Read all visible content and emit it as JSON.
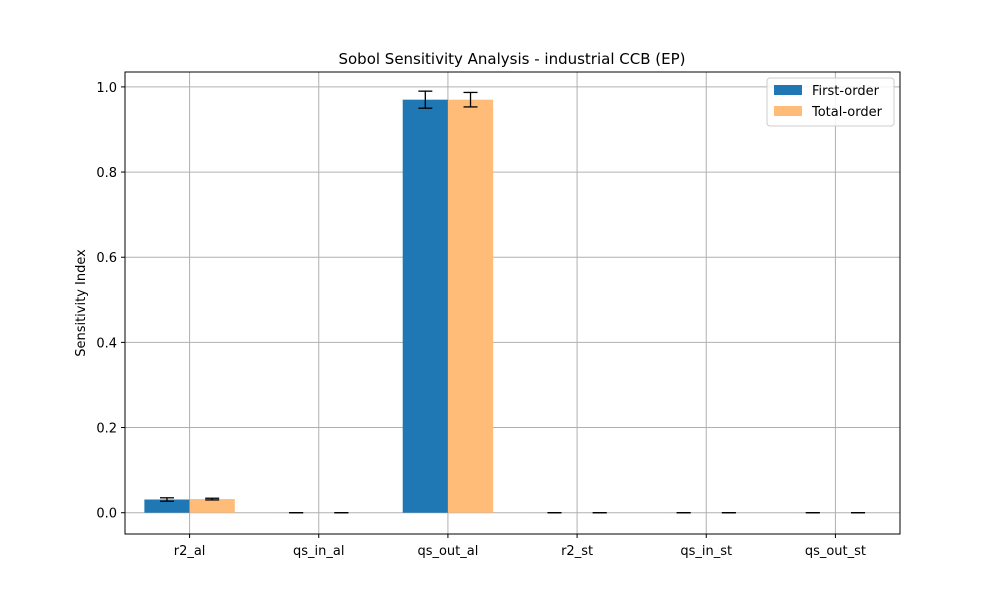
{
  "chart_data": {
    "type": "bar",
    "title": "Sobol Sensitivity Analysis - industrial CCB (EP)",
    "xlabel": "",
    "ylabel": "Sensitivity Index",
    "categories": [
      "r2_al",
      "qs_in_al",
      "qs_out_al",
      "r2_st",
      "qs_in_st",
      "qs_out_st"
    ],
    "ylim": [
      -0.05,
      1.035
    ],
    "yticks": [
      0.0,
      0.2,
      0.4,
      0.6,
      0.8,
      1.0
    ],
    "ytick_labels": [
      "0.0",
      "0.2",
      "0.4",
      "0.6",
      "0.8",
      "1.0"
    ],
    "grid": true,
    "legend_position": "top-right",
    "series": [
      {
        "name": "First-order",
        "color": "#1f77b4",
        "values": [
          0.031,
          0.0,
          0.97,
          0.0,
          0.0,
          0.0
        ],
        "errors": [
          0.004,
          0.0,
          0.02,
          0.0,
          0.0,
          0.0
        ]
      },
      {
        "name": "Total-order",
        "color": "#ffbb78",
        "values": [
          0.032,
          0.0,
          0.97,
          0.0,
          0.0,
          0.0
        ],
        "errors": [
          0.002,
          0.0,
          0.017,
          0.0,
          0.0,
          0.0
        ]
      }
    ]
  }
}
